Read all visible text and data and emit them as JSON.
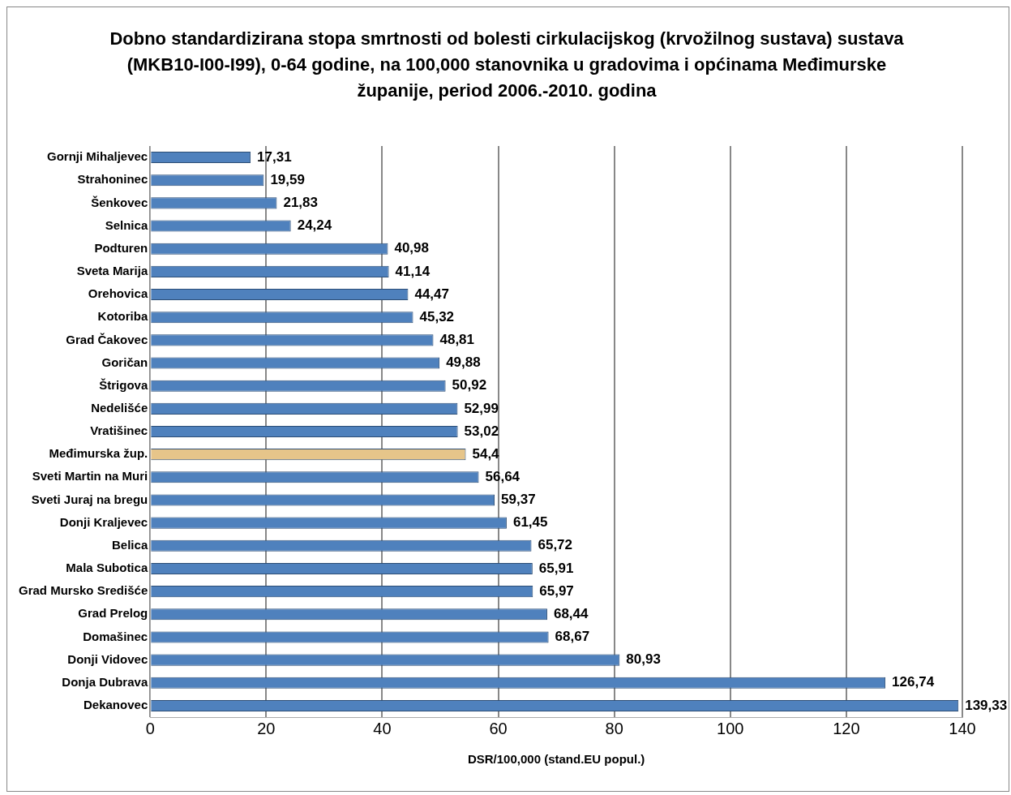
{
  "chart_data": {
    "type": "bar",
    "orientation": "horizontal",
    "title": "Dobno standardizirana stopa smrtnosti od bolesti cirkulacijskog (krvožilnog sustava) sustava (MKB10-I00-I99), 0-64 godine, na 100,000 stanovnika u gradovima i općinama Međimurske županije, period 2006.-2010. godina",
    "xlabel": "DSR/100,000 (stand.EU popul.)",
    "categories": [
      "Gornji Mihaljevec",
      "Strahoninec",
      "Šenkovec",
      "Selnica",
      "Podturen",
      "Sveta Marija",
      "Orehovica",
      "Kotoriba",
      "Grad Čakovec",
      "Goričan",
      "Štrigova",
      "Nedelišće",
      "Vratišinec",
      "Međimurska žup.",
      "Sveti Martin na Muri",
      "Sveti Juraj na bregu",
      "Donji Kraljevec",
      "Belica",
      "Mala Subotica",
      "Grad Mursko Središće",
      "Grad Prelog",
      "Domašinec",
      "Donji Vidovec",
      "Donja Dubrava",
      "Dekanovec"
    ],
    "values": [
      17.31,
      19.59,
      21.83,
      24.24,
      40.98,
      41.14,
      44.47,
      45.32,
      48.81,
      49.88,
      50.92,
      52.99,
      53.02,
      54.4,
      56.64,
      59.37,
      61.45,
      65.72,
      65.91,
      65.97,
      68.44,
      68.67,
      80.93,
      126.74,
      139.33
    ],
    "value_labels": [
      "17,31",
      "19,59",
      "21,83",
      "24,24",
      "40,98",
      "41,14",
      "44,47",
      "45,32",
      "48,81",
      "49,88",
      "50,92",
      "52,99",
      "53,02",
      "54,4",
      "56,64",
      "59,37",
      "61,45",
      "65,72",
      "65,91",
      "65,97",
      "68,44",
      "68,67",
      "80,93",
      "126,74",
      "139,33"
    ],
    "colors": [
      "#4f81bd",
      "#4f81bd",
      "#4f81bd",
      "#4f81bd",
      "#4f81bd",
      "#4f81bd",
      "#4f81bd",
      "#4f81bd",
      "#4f81bd",
      "#4f81bd",
      "#4f81bd",
      "#4f81bd",
      "#4f81bd",
      "#e6c58a",
      "#4f81bd",
      "#4f81bd",
      "#4f81bd",
      "#4f81bd",
      "#4f81bd",
      "#4f81bd",
      "#4f81bd",
      "#4f81bd",
      "#4f81bd",
      "#4f81bd",
      "#4f81bd"
    ],
    "xlim": [
      0,
      140
    ],
    "xticks": [
      0,
      20,
      40,
      60,
      80,
      100,
      120,
      140
    ],
    "grid": "x",
    "legend": false
  }
}
